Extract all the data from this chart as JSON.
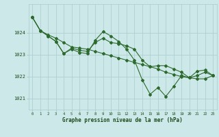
{
  "xlabel": "Graphe pression niveau de la mer (hPa)",
  "x_hours": [
    0,
    1,
    2,
    3,
    4,
    5,
    6,
    7,
    8,
    9,
    10,
    11,
    12,
    13,
    14,
    15,
    16,
    17,
    18,
    19,
    20,
    21,
    22,
    23
  ],
  "line1": [
    1024.7,
    1024.1,
    1023.85,
    1023.6,
    1023.05,
    1023.3,
    1023.2,
    1023.15,
    1023.55,
    1023.75,
    1023.55,
    1023.5,
    1023.4,
    1023.25,
    1022.75,
    1022.45,
    1022.5,
    1022.5,
    1022.35,
    1022.2,
    1021.95,
    1022.05,
    1022.2,
    1022.05
  ],
  "line2": [
    1024.7,
    1024.1,
    1023.85,
    1023.6,
    1023.05,
    1023.25,
    1023.1,
    1023.05,
    1023.65,
    1024.05,
    1023.85,
    1023.6,
    1023.25,
    1022.75,
    1021.85,
    1021.2,
    1021.5,
    1021.1,
    1021.55,
    1022.05,
    1021.95,
    1022.25,
    1022.3,
    1022.05
  ],
  "line3": [
    1024.7,
    1024.1,
    1023.9,
    1023.75,
    1023.55,
    1023.35,
    1023.3,
    1023.25,
    1023.15,
    1023.05,
    1022.95,
    1022.85,
    1022.75,
    1022.65,
    1022.55,
    1022.45,
    1022.35,
    1022.2,
    1022.1,
    1022.0,
    1021.95,
    1021.9,
    1021.9,
    1022.05
  ],
  "line_color": "#2d6a2d",
  "marker_color": "#2d6a2d",
  "bg_color": "#cce8e8",
  "grid_color": "#aacccc",
  "axis_label_color": "#1a4a1a",
  "tick_label_color": "#1a4a1a",
  "ylim_min": 1020.5,
  "ylim_max": 1025.3,
  "yticks": [
    1021,
    1022,
    1023,
    1024
  ],
  "xticks": [
    0,
    1,
    2,
    3,
    4,
    5,
    6,
    7,
    8,
    9,
    10,
    11,
    12,
    13,
    14,
    15,
    16,
    17,
    18,
    19,
    20,
    21,
    22,
    23
  ]
}
